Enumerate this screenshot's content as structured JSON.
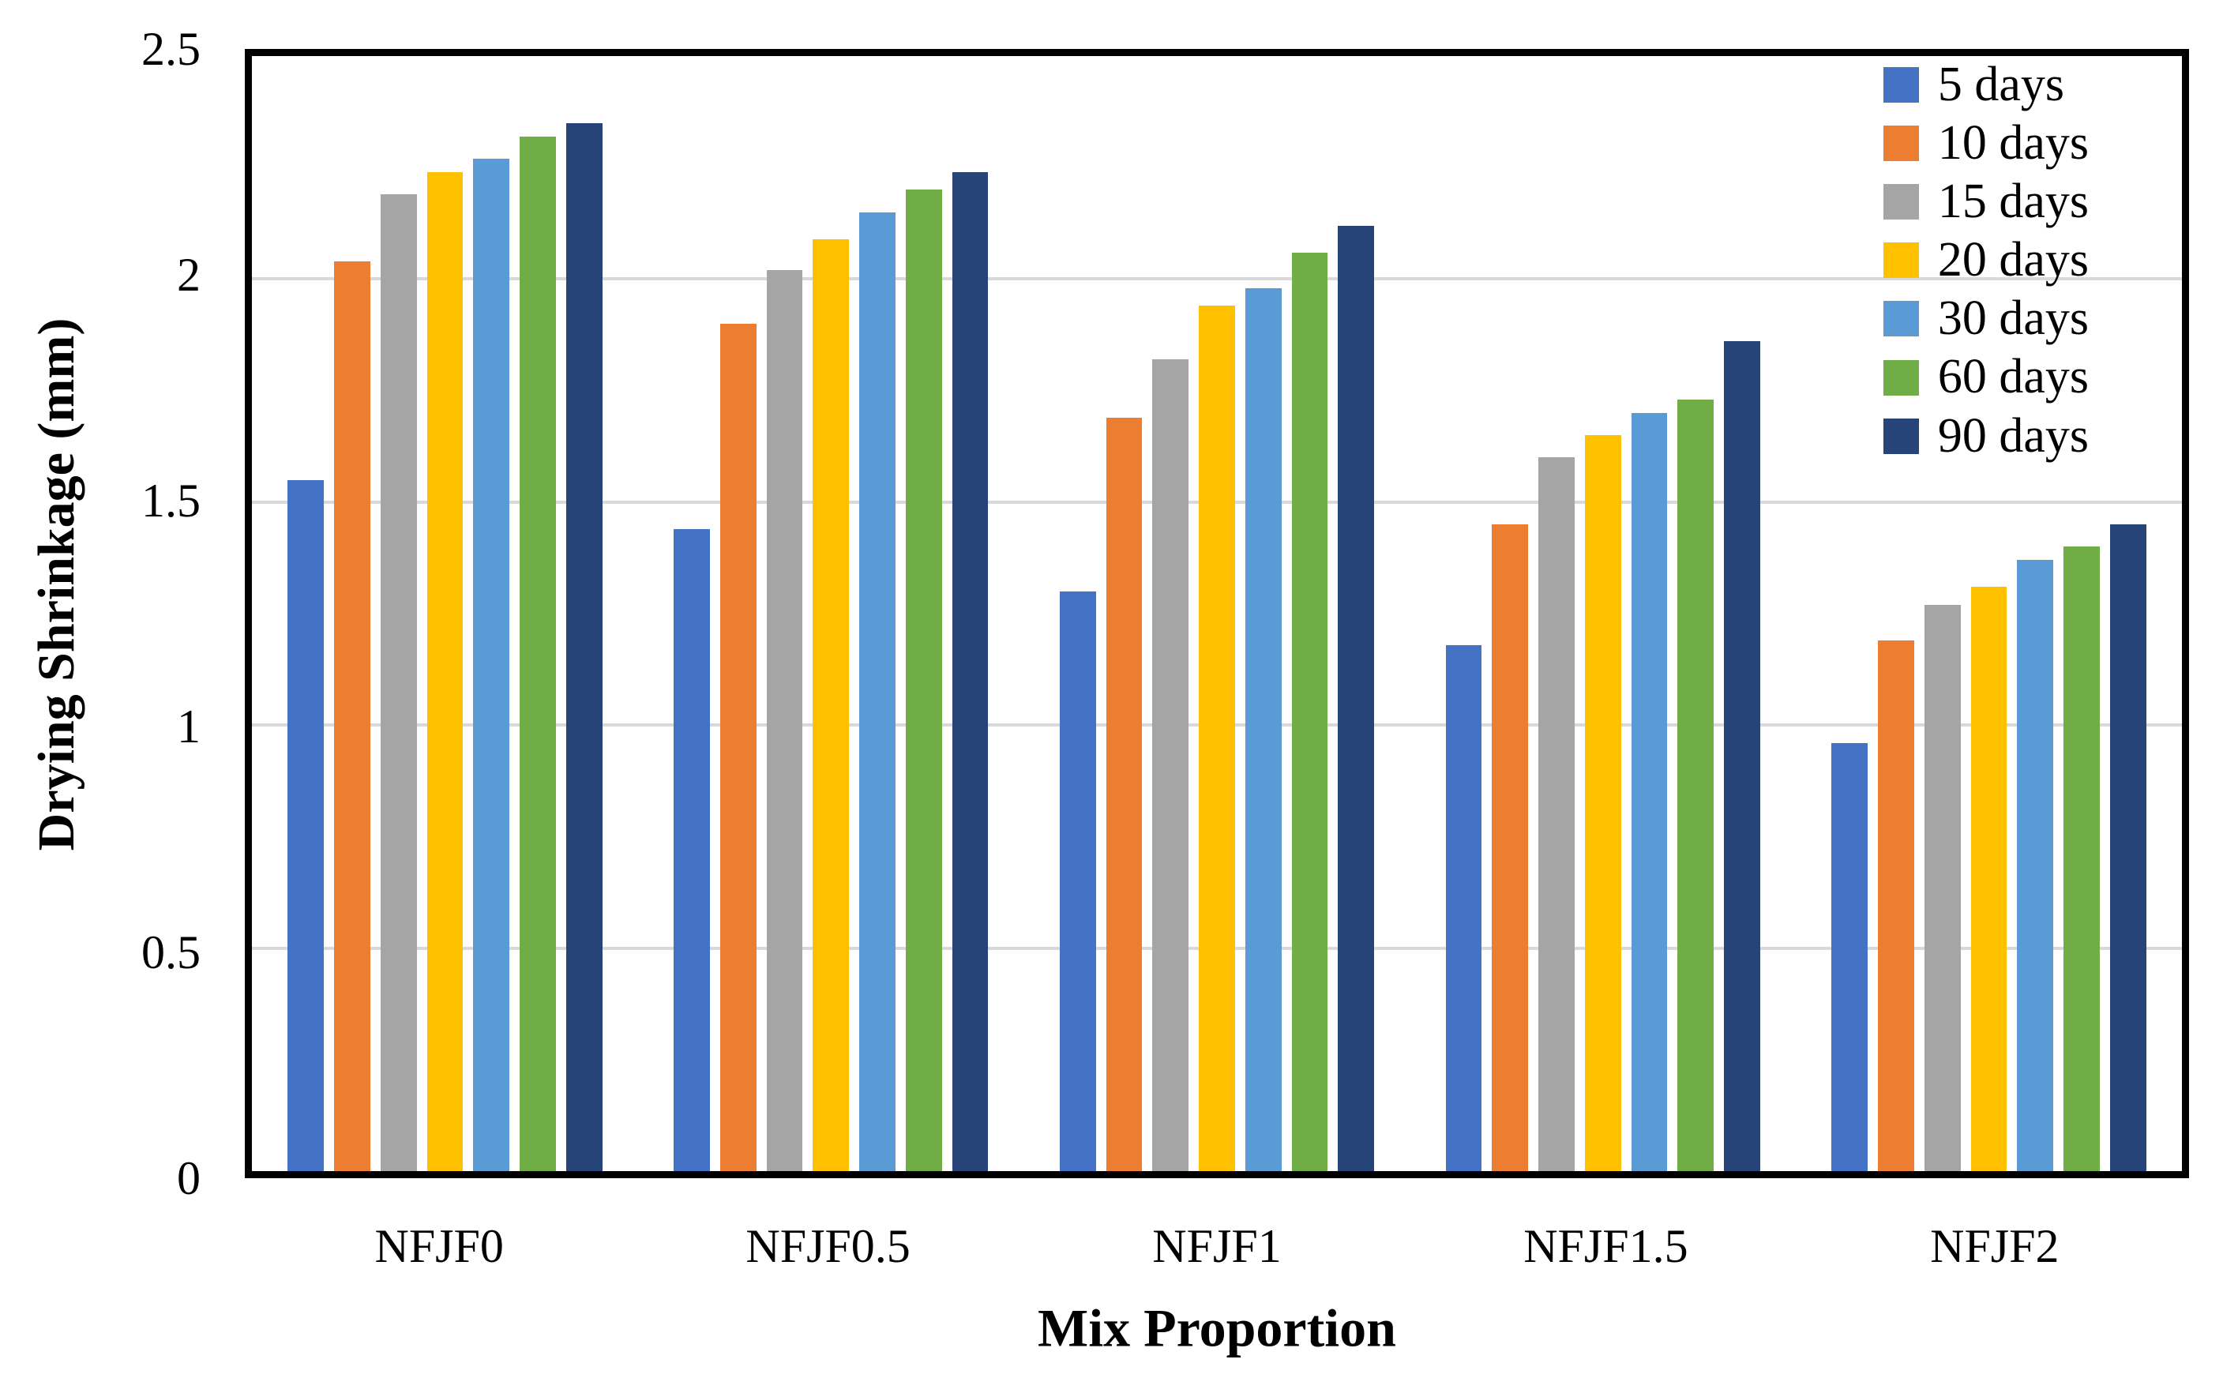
{
  "chart_data": {
    "type": "bar",
    "title": "",
    "xlabel": "Mix Proportion",
    "ylabel": "Drying Shrinkage (mm)",
    "categories": [
      "NFJF0",
      "NFJF0.5",
      "NFJF1",
      "NFJF1.5",
      "NFJF2"
    ],
    "series": [
      {
        "name": "5 days",
        "color": "#4472C4",
        "values": [
          1.55,
          1.44,
          1.3,
          1.18,
          0.96
        ]
      },
      {
        "name": "10 days",
        "color": "#ED7D31",
        "values": [
          2.04,
          1.9,
          1.69,
          1.45,
          1.19
        ]
      },
      {
        "name": "15 days",
        "color": "#A5A5A5",
        "values": [
          2.19,
          2.02,
          1.82,
          1.6,
          1.27
        ]
      },
      {
        "name": "20 days",
        "color": "#FFC000",
        "values": [
          2.24,
          2.09,
          1.94,
          1.65,
          1.31
        ]
      },
      {
        "name": "30 days",
        "color": "#5B9BD5",
        "values": [
          2.27,
          2.15,
          1.98,
          1.7,
          1.37
        ]
      },
      {
        "name": "60 days",
        "color": "#70AD47",
        "values": [
          2.32,
          2.2,
          2.06,
          1.73,
          1.4
        ]
      },
      {
        "name": "90 days",
        "color": "#264478",
        "values": [
          2.35,
          2.24,
          2.12,
          1.86,
          1.45
        ]
      }
    ],
    "ylim": [
      0,
      2.5
    ],
    "yticks": [
      0,
      0.5,
      1,
      1.5,
      2,
      2.5
    ],
    "ytick_labels": [
      "0",
      "0.5",
      "1",
      "1.5",
      "2",
      "2.5"
    ],
    "grid": true,
    "gridline_color": "#d9d9d9",
    "frame_color": "#000000",
    "legend_position": "top-right-inside"
  }
}
